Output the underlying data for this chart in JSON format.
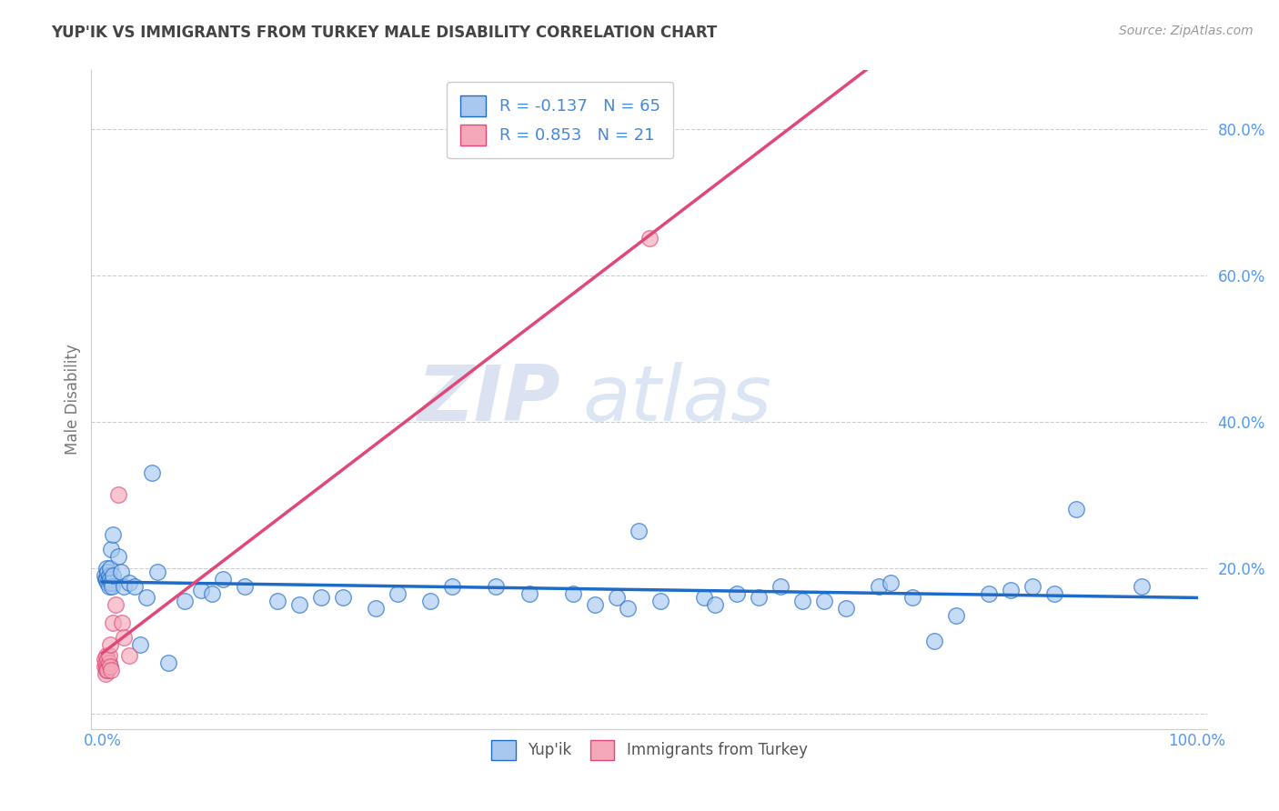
{
  "title": "YUP'IK VS IMMIGRANTS FROM TURKEY MALE DISABILITY CORRELATION CHART",
  "source": "Source: ZipAtlas.com",
  "ylabel": "Male Disability",
  "legend_labels": [
    "Yup'ik",
    "Immigrants from Turkey"
  ],
  "blue_color": "#A8C8F0",
  "pink_color": "#F4A8B8",
  "blue_line_color": "#1E6BC8",
  "pink_line_color": "#E04878",
  "R_blue": -0.137,
  "N_blue": 65,
  "R_pink": 0.853,
  "N_pink": 21,
  "blue_points": [
    [
      0.002,
      0.19
    ],
    [
      0.003,
      0.185
    ],
    [
      0.004,
      0.2
    ],
    [
      0.004,
      0.185
    ],
    [
      0.005,
      0.195
    ],
    [
      0.005,
      0.18
    ],
    [
      0.006,
      0.19
    ],
    [
      0.006,
      0.175
    ],
    [
      0.007,
      0.185
    ],
    [
      0.007,
      0.2
    ],
    [
      0.008,
      0.18
    ],
    [
      0.008,
      0.225
    ],
    [
      0.009,
      0.175
    ],
    [
      0.01,
      0.19
    ],
    [
      0.01,
      0.245
    ],
    [
      0.015,
      0.215
    ],
    [
      0.017,
      0.195
    ],
    [
      0.02,
      0.175
    ],
    [
      0.025,
      0.18
    ],
    [
      0.03,
      0.175
    ],
    [
      0.035,
      0.095
    ],
    [
      0.04,
      0.16
    ],
    [
      0.045,
      0.33
    ],
    [
      0.05,
      0.195
    ],
    [
      0.06,
      0.07
    ],
    [
      0.075,
      0.155
    ],
    [
      0.09,
      0.17
    ],
    [
      0.1,
      0.165
    ],
    [
      0.11,
      0.185
    ],
    [
      0.13,
      0.175
    ],
    [
      0.16,
      0.155
    ],
    [
      0.18,
      0.15
    ],
    [
      0.2,
      0.16
    ],
    [
      0.22,
      0.16
    ],
    [
      0.25,
      0.145
    ],
    [
      0.27,
      0.165
    ],
    [
      0.3,
      0.155
    ],
    [
      0.32,
      0.175
    ],
    [
      0.36,
      0.175
    ],
    [
      0.39,
      0.165
    ],
    [
      0.43,
      0.165
    ],
    [
      0.45,
      0.15
    ],
    [
      0.47,
      0.16
    ],
    [
      0.48,
      0.145
    ],
    [
      0.49,
      0.25
    ],
    [
      0.51,
      0.155
    ],
    [
      0.55,
      0.16
    ],
    [
      0.56,
      0.15
    ],
    [
      0.58,
      0.165
    ],
    [
      0.6,
      0.16
    ],
    [
      0.62,
      0.175
    ],
    [
      0.64,
      0.155
    ],
    [
      0.66,
      0.155
    ],
    [
      0.68,
      0.145
    ],
    [
      0.71,
      0.175
    ],
    [
      0.72,
      0.18
    ],
    [
      0.74,
      0.16
    ],
    [
      0.76,
      0.1
    ],
    [
      0.78,
      0.135
    ],
    [
      0.81,
      0.165
    ],
    [
      0.83,
      0.17
    ],
    [
      0.85,
      0.175
    ],
    [
      0.87,
      0.165
    ],
    [
      0.89,
      0.28
    ],
    [
      0.95,
      0.175
    ]
  ],
  "pink_points": [
    [
      0.002,
      0.065
    ],
    [
      0.002,
      0.075
    ],
    [
      0.003,
      0.055
    ],
    [
      0.003,
      0.07
    ],
    [
      0.004,
      0.08
    ],
    [
      0.004,
      0.065
    ],
    [
      0.004,
      0.06
    ],
    [
      0.005,
      0.075
    ],
    [
      0.005,
      0.06
    ],
    [
      0.006,
      0.07
    ],
    [
      0.006,
      0.08
    ],
    [
      0.007,
      0.065
    ],
    [
      0.007,
      0.095
    ],
    [
      0.008,
      0.06
    ],
    [
      0.01,
      0.125
    ],
    [
      0.012,
      0.15
    ],
    [
      0.015,
      0.3
    ],
    [
      0.018,
      0.125
    ],
    [
      0.02,
      0.105
    ],
    [
      0.025,
      0.08
    ],
    [
      0.5,
      0.65
    ]
  ],
  "watermark_zip": "ZIP",
  "watermark_atlas": "atlas",
  "background_color": "#ffffff",
  "grid_color": "#cccccc"
}
